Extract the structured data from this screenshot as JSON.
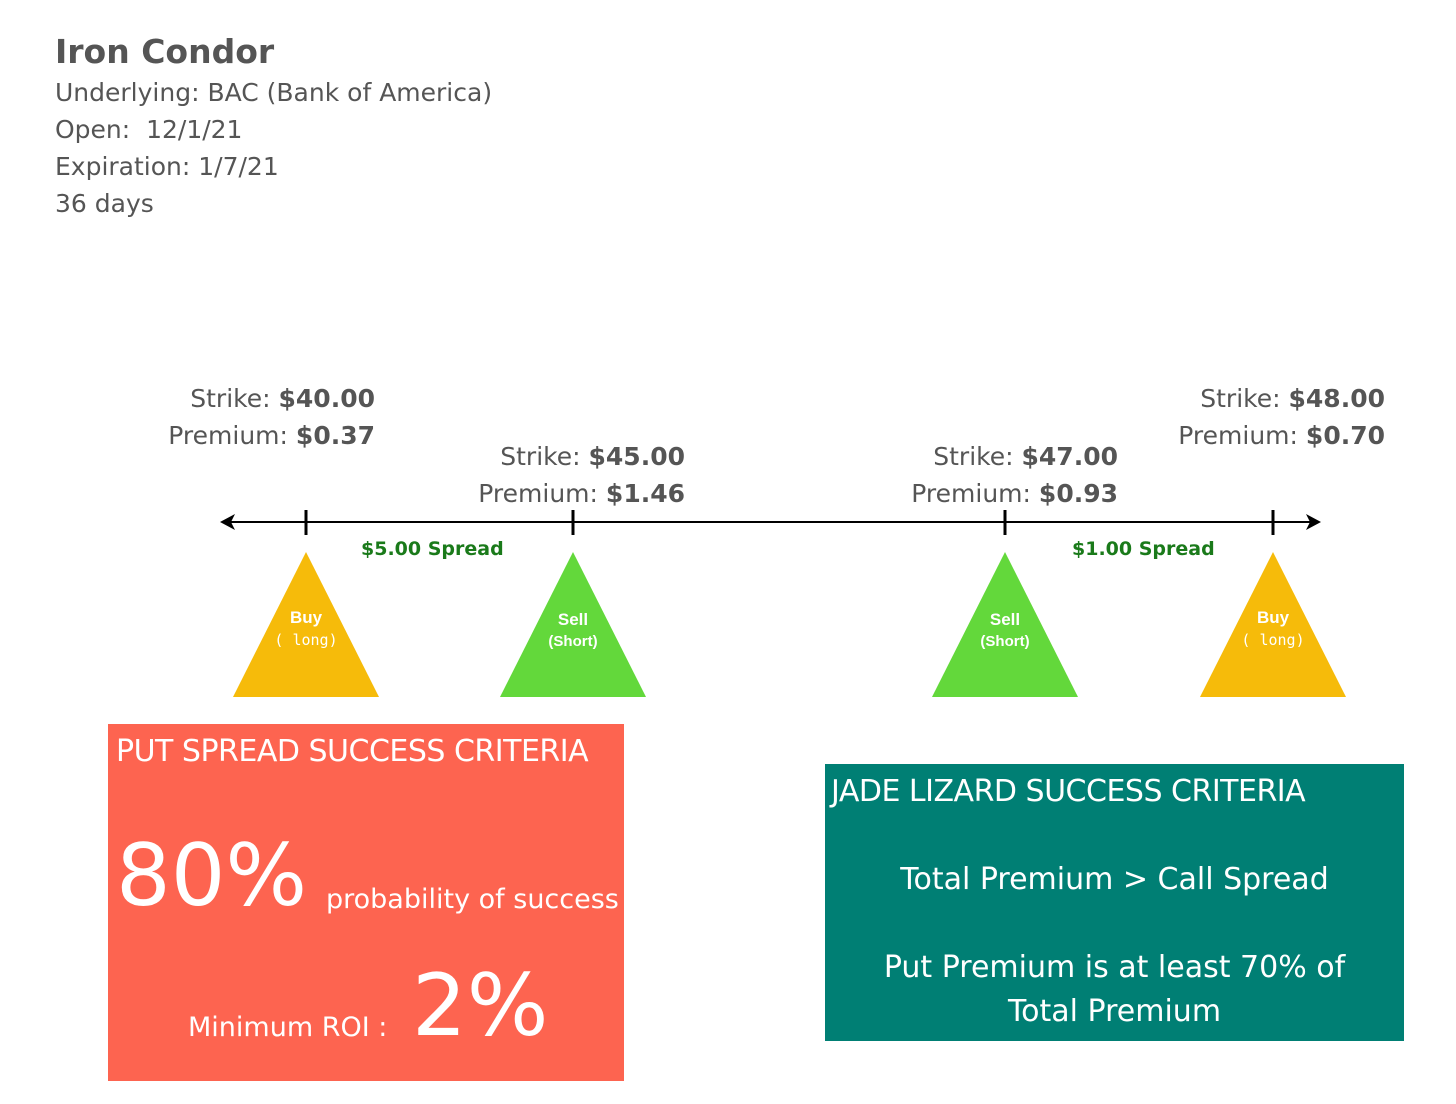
{
  "header": {
    "title": "Iron Condor",
    "underlying": "Underlying: BAC (Bank of America)",
    "open": "Open:  12/1/21",
    "expiration": "Expiration: 1/7/21",
    "duration": "36 days"
  },
  "legs": [
    {
      "strike_label": "Strike:",
      "strike": "$40.00",
      "premium_label": "Premium:",
      "premium": "$0.37",
      "action": "Buy",
      "side": "( long)",
      "color": "#f6bb0a"
    },
    {
      "strike_label": "Strike:",
      "strike": "$45.00",
      "premium_label": "Premium:",
      "premium": "$1.46",
      "action": "Sell",
      "side": "(Short)",
      "color": "#63d83b"
    },
    {
      "strike_label": "Strike:",
      "strike": "$47.00",
      "premium_label": "Premium:",
      "premium": "$0.93",
      "action": "Sell",
      "side": "(Short)",
      "color": "#63d83b"
    },
    {
      "strike_label": "Strike:",
      "strike": "$48.00",
      "premium_label": "Premium:",
      "premium": "$0.70",
      "action": "Buy",
      "side": "( long)",
      "color": "#f6bb0a"
    }
  ],
  "spreads": [
    {
      "label": "$5.00 Spread"
    },
    {
      "label": "$1.00 Spread"
    }
  ],
  "put_box": {
    "title": "PUT SPREAD SUCCESS CRITERIA",
    "probability_value": "80%",
    "probability_label": "probability of success",
    "roi_label": "Minimum ROI :",
    "roi_value": "2%",
    "background": "#fd6450"
  },
  "jade_box": {
    "title": "JADE LIZARD SUCCESS CRITERIA",
    "criteria": [
      "Total Premium > Call Spread",
      "Put Premium is at least 70% of Total Premium"
    ],
    "background": "#007f74"
  }
}
